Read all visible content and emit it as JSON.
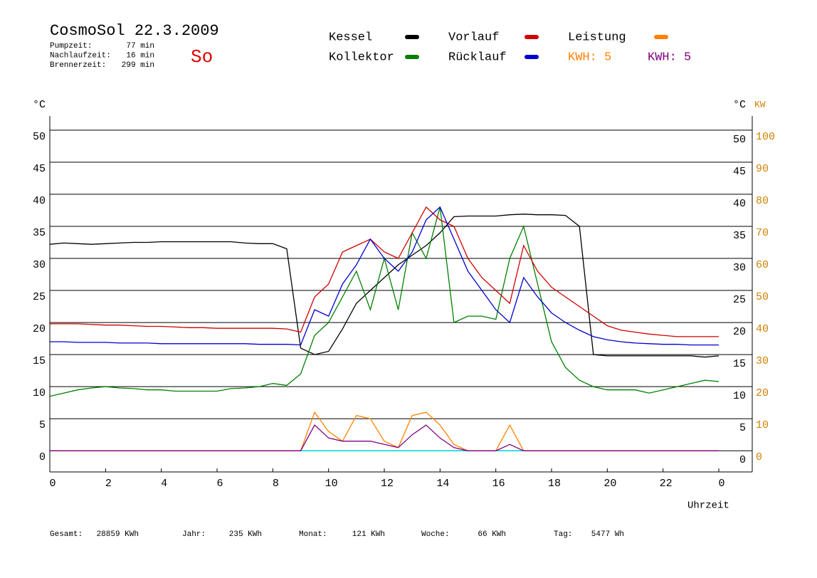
{
  "chart_data": {
    "type": "line",
    "title": "CosmoSol 22.3.2009",
    "day": "So",
    "info": [
      {
        "label": "Pumpzeit:",
        "value": "77 min"
      },
      {
        "label": "Nachlaufzeit:",
        "value": "16 min"
      },
      {
        "label": "Brennerzeit:",
        "value": "299 min"
      }
    ],
    "energy_labels": [
      {
        "text": "KWH: 5",
        "color": "#ff8000"
      },
      {
        "text": "KWH: 5",
        "color": "#800080"
      }
    ],
    "y_label": "°C",
    "y2_unit_label": "°C",
    "y2_label": "KW",
    "x_label": "Uhrzeit",
    "footer": [
      {
        "label": "Gesamt:",
        "value": "28859 KWh"
      },
      {
        "label": "Jahr:",
        "value": "235 KWh"
      },
      {
        "label": "Monat:",
        "value": "121 KWh"
      },
      {
        "label": "Woche:",
        "value": "66 KWh"
      },
      {
        "label": "Tag:",
        "value": "5477 Wh"
      }
    ],
    "x": [
      0,
      0.5,
      1,
      1.5,
      2,
      2.5,
      3,
      3.5,
      4,
      4.5,
      5,
      5.5,
      6,
      6.5,
      7,
      7.5,
      8,
      8.5,
      9,
      9.5,
      10,
      10.5,
      11,
      11.5,
      12,
      12.5,
      13,
      13.5,
      14,
      14.5,
      15,
      15.5,
      16,
      16.5,
      17,
      17.5,
      18,
      18.5,
      19,
      19.5,
      20,
      20.5,
      21,
      21.5,
      22,
      22.5,
      23,
      23.5,
      24
    ],
    "xlim": [
      0,
      24
    ],
    "xticks": [
      0,
      2,
      4,
      6,
      8,
      10,
      12,
      14,
      16,
      18,
      20,
      22,
      {
        "value": 24,
        "label": "0"
      }
    ],
    "ylim": [
      -3.3,
      52.2
    ],
    "yticks": [
      0,
      5,
      10,
      15,
      20,
      25,
      30,
      35,
      40,
      45,
      50
    ],
    "y2lim": [
      -6.6,
      104.4
    ],
    "y2ticks": [
      0,
      10,
      20,
      30,
      40,
      50,
      60,
      70,
      80,
      90,
      100
    ],
    "grid": true,
    "series": [
      {
        "name": "Kessel",
        "color": "#000000",
        "values": [
          32.2,
          32.4,
          32.3,
          32.2,
          32.3,
          32.4,
          32.5,
          32.5,
          32.6,
          32.6,
          32.6,
          32.6,
          32.6,
          32.6,
          32.4,
          32.3,
          32.3,
          31.5,
          16,
          15,
          15.5,
          19,
          23,
          25,
          27,
          29,
          30.5,
          32,
          34,
          36.5,
          36.6,
          36.6,
          36.6,
          36.8,
          36.9,
          36.8,
          36.8,
          36.7,
          35,
          15,
          14.8,
          14.8,
          14.8,
          14.8,
          14.8,
          14.8,
          14.8,
          14.6,
          14.8
        ]
      },
      {
        "name": "Kollektor",
        "color": "#008000",
        "values": [
          8.5,
          9,
          9.5,
          9.8,
          10,
          9.8,
          9.7,
          9.5,
          9.5,
          9.3,
          9.3,
          9.3,
          9.3,
          9.7,
          9.8,
          10,
          10.5,
          10.2,
          12,
          18,
          20,
          24,
          28,
          22,
          30,
          22,
          34,
          30,
          38,
          20,
          21,
          21,
          20.5,
          30,
          35,
          26,
          17,
          13,
          11,
          10,
          9.5,
          9.5,
          9.5,
          9,
          9.5,
          10,
          10.5,
          11,
          10.8
        ]
      },
      {
        "name": "Vorlauf",
        "color": "#d00000",
        "values": [
          19.8,
          19.8,
          19.8,
          19.7,
          19.6,
          19.6,
          19.5,
          19.4,
          19.4,
          19.3,
          19.2,
          19.2,
          19.1,
          19.1,
          19.1,
          19.1,
          19.1,
          19,
          18.5,
          24,
          26,
          31,
          32,
          33,
          31,
          30,
          34,
          38,
          36,
          35,
          30,
          27,
          25,
          23,
          32,
          28,
          25.5,
          24,
          22.5,
          21,
          19.5,
          18.8,
          18.5,
          18.2,
          18,
          17.8,
          17.8,
          17.8,
          17.8
        ]
      },
      {
        "name": "Rücklauf",
        "color": "#0000d0",
        "values": [
          17,
          17,
          16.9,
          16.9,
          16.9,
          16.8,
          16.8,
          16.8,
          16.7,
          16.7,
          16.7,
          16.7,
          16.7,
          16.7,
          16.7,
          16.6,
          16.6,
          16.6,
          16.5,
          22,
          21,
          26,
          29,
          33,
          30,
          28,
          31,
          36,
          38,
          33,
          28,
          25,
          22,
          20,
          27,
          24,
          21.5,
          20,
          18.8,
          17.8,
          17.3,
          17,
          16.8,
          16.7,
          16.6,
          16.6,
          16.5,
          16.5,
          16.5
        ]
      },
      {
        "name": "Leistung",
        "color": "#ff8000",
        "axis": "y2",
        "values": [
          0,
          0,
          0,
          0,
          0,
          0,
          0,
          0,
          0,
          0,
          0,
          0,
          0,
          0,
          0,
          0,
          0,
          0,
          0,
          12,
          6,
          3,
          11,
          10,
          3,
          1,
          11,
          12,
          8,
          2,
          0,
          0,
          0,
          8,
          0,
          0,
          0,
          0,
          0,
          0,
          0,
          0,
          0,
          0,
          0,
          0,
          0,
          0,
          0
        ]
      },
      {
        "color": "#800080",
        "axis": "y2",
        "values": [
          0,
          0,
          0,
          0,
          0,
          0,
          0,
          0,
          0,
          0,
          0,
          0,
          0,
          0,
          0,
          0,
          0,
          0,
          0,
          8,
          4,
          3,
          3,
          3,
          2,
          1,
          5,
          8,
          4,
          1,
          0,
          0,
          0,
          2,
          0,
          0,
          0,
          0,
          0,
          0,
          0,
          0,
          0,
          0,
          0,
          0,
          0,
          0,
          0
        ]
      }
    ]
  }
}
